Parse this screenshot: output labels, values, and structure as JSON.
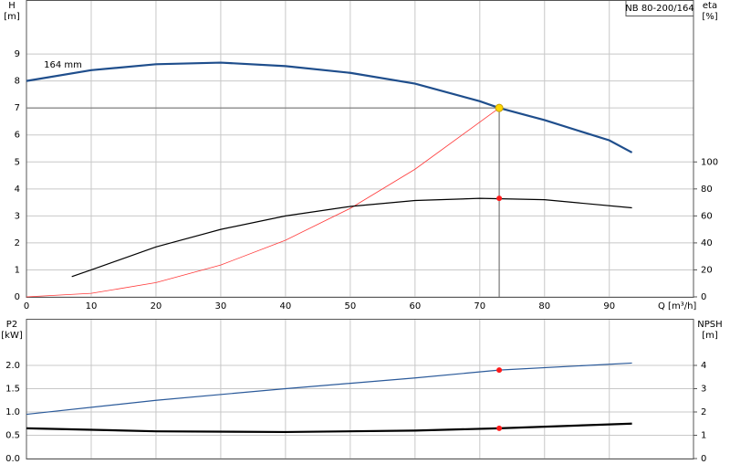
{
  "chart_data": [
    {
      "type": "line",
      "title": "NB 80-200/164",
      "ylabel": "H",
      "yunit": "[m]",
      "y2label": "eta",
      "y2unit": "[%]",
      "xlabel": "Q [m³/h]",
      "xlim": [
        0,
        103
      ],
      "xticks": [
        0,
        10,
        20,
        30,
        40,
        50,
        60,
        70,
        80,
        90
      ],
      "xtick_labels": true,
      "ylim": [
        0,
        11
      ],
      "yticks": [
        0,
        1,
        2,
        3,
        4,
        5,
        6,
        7,
        8,
        9
      ],
      "y2lim": [
        0,
        220
      ],
      "y2ticks": [
        0,
        20,
        40,
        60,
        80,
        100
      ],
      "grid": true,
      "series": [
        {
          "color": "#1f4e8c",
          "line_width": 2.2,
          "axis": "y",
          "x": [
            0,
            10,
            20,
            30,
            40,
            50,
            60,
            70,
            73,
            80,
            90,
            93.5
          ],
          "values": [
            8.0,
            8.4,
            8.62,
            8.68,
            8.55,
            8.3,
            7.9,
            7.25,
            7.0,
            6.55,
            5.8,
            5.35
          ]
        },
        {
          "color": "#ff3a3a",
          "line_width": 0.8,
          "axis": "y",
          "x": [
            0,
            10,
            20,
            30,
            40,
            50,
            60,
            73
          ],
          "values": [
            0,
            0.13,
            0.53,
            1.18,
            2.1,
            3.28,
            4.73,
            7.0
          ]
        },
        {
          "color": "#000000",
          "line_width": 1.2,
          "axis": "y2",
          "x": [
            7,
            10,
            20,
            30,
            40,
            50,
            60,
            70,
            80,
            93.5
          ],
          "values": [
            15,
            20,
            37,
            50,
            60,
            67,
            71.4,
            73,
            72,
            66
          ]
        }
      ],
      "points": [
        {
          "x": 73,
          "value": 7.0,
          "color": "#ffd800",
          "axis": "y",
          "guide": true
        },
        {
          "x": 73,
          "value": 73,
          "color": "#ff1a1a",
          "axis": "y2",
          "guide": false
        }
      ],
      "annotations": [
        {
          "text": "164 mm",
          "x": 2.7,
          "y": 8.6
        }
      ]
    },
    {
      "type": "line",
      "ylabel": "P2",
      "yunit": "[kW]",
      "y2label": "NPSH",
      "y2unit": "[m]",
      "xlim": [
        0,
        103
      ],
      "xticks": [
        0,
        10,
        20,
        30,
        40,
        50,
        60,
        70,
        80,
        90
      ],
      "xtick_labels": false,
      "ylim": [
        0,
        3
      ],
      "yticks": [
        {
          "value": 0,
          "label": "0.0"
        },
        0.5,
        {
          "value": 1,
          "label": "1.0"
        },
        1.5,
        {
          "value": 2,
          "label": "2.0"
        }
      ],
      "y2lim": [
        0,
        6
      ],
      "y2ticks": [
        0,
        1,
        2,
        3,
        4
      ],
      "grid": true,
      "series": [
        {
          "color": "#2b5a9a",
          "line_width": 1.2,
          "axis": "y",
          "x": [
            0,
            20,
            40,
            60,
            73,
            93.5
          ],
          "values": [
            0.95,
            1.25,
            1.5,
            1.73,
            1.9,
            2.05
          ]
        },
        {
          "color": "#000000",
          "line_width": 2.2,
          "axis": "y2",
          "x": [
            0,
            20,
            40,
            60,
            73,
            93.5
          ],
          "values": [
            1.3,
            1.17,
            1.14,
            1.2,
            1.3,
            1.5
          ]
        }
      ],
      "points": [
        {
          "x": 73,
          "value": 1.9,
          "color": "#ff1a1a",
          "axis": "y",
          "guide": false
        },
        {
          "x": 73,
          "value": 1.3,
          "color": "#ff1a1a",
          "axis": "y2",
          "guide": false
        }
      ],
      "annotations": []
    }
  ]
}
